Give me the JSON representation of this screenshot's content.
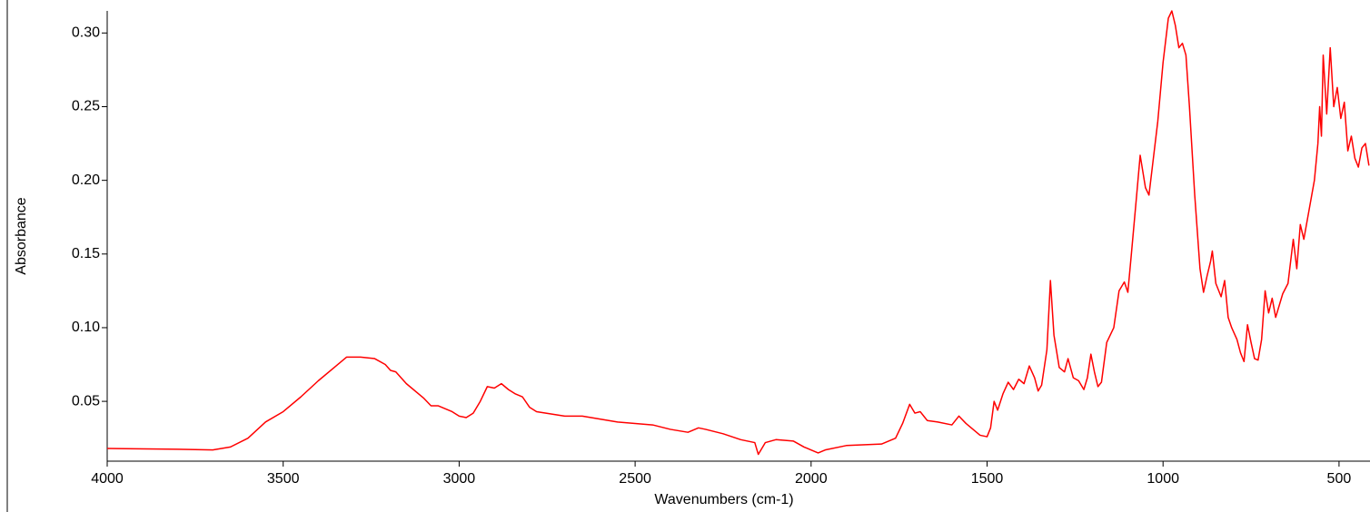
{
  "chart_data": {
    "type": "line",
    "xlabel": "Wavenumbers (cm-1)",
    "ylabel": "Absorbance",
    "color": "#ff0000",
    "xlim": [
      4000,
      412
    ],
    "ylim": [
      0.0094,
      0.315
    ],
    "xticks": [
      4000,
      3500,
      3000,
      2500,
      2000,
      1500,
      1000,
      500
    ],
    "yticks": [
      {
        "value": 0.05,
        "label": "0.05"
      },
      {
        "value": 0.1,
        "label": "0.10"
      },
      {
        "value": 0.15,
        "label": "0.15"
      },
      {
        "value": 0.2,
        "label": "0.20"
      },
      {
        "value": 0.25,
        "label": "0.25"
      },
      {
        "value": 0.3,
        "label": "0.30"
      }
    ],
    "x": [
      4000,
      3800,
      3700,
      3650,
      3600,
      3550,
      3500,
      3450,
      3400,
      3350,
      3320,
      3280,
      3240,
      3210,
      3195,
      3180,
      3150,
      3100,
      3080,
      3060,
      3040,
      3020,
      3000,
      2980,
      2960,
      2940,
      2920,
      2900,
      2880,
      2860,
      2840,
      2820,
      2800,
      2780,
      2700,
      2650,
      2600,
      2550,
      2500,
      2450,
      2400,
      2350,
      2320,
      2300,
      2250,
      2200,
      2160,
      2150,
      2130,
      2100,
      2050,
      2020,
      2000,
      1980,
      1960,
      1900,
      1800,
      1760,
      1740,
      1720,
      1705,
      1690,
      1670,
      1640,
      1600,
      1580,
      1560,
      1520,
      1500,
      1490,
      1480,
      1470,
      1455,
      1440,
      1425,
      1410,
      1395,
      1380,
      1365,
      1355,
      1345,
      1330,
      1320,
      1310,
      1295,
      1280,
      1270,
      1255,
      1240,
      1225,
      1215,
      1205,
      1195,
      1185,
      1175,
      1160,
      1140,
      1125,
      1110,
      1100,
      1090,
      1075,
      1065,
      1050,
      1040,
      1030,
      1015,
      1000,
      985,
      975,
      965,
      955,
      945,
      935,
      925,
      910,
      895,
      885,
      875,
      865,
      860,
      850,
      835,
      825,
      815,
      805,
      790,
      780,
      770,
      760,
      750,
      740,
      730,
      720,
      710,
      700,
      690,
      680,
      670,
      660,
      645,
      630,
      620,
      610,
      600,
      585,
      570,
      560,
      555,
      550,
      545,
      535,
      525,
      515,
      505,
      495,
      485,
      475,
      465,
      455,
      445,
      435,
      425,
      415
    ],
    "values": [
      0.018,
      0.0175,
      0.017,
      0.019,
      0.025,
      0.036,
      0.043,
      0.053,
      0.064,
      0.074,
      0.08,
      0.08,
      0.079,
      0.075,
      0.071,
      0.07,
      0.062,
      0.052,
      0.047,
      0.047,
      0.045,
      0.043,
      0.04,
      0.039,
      0.042,
      0.05,
      0.06,
      0.059,
      0.062,
      0.058,
      0.055,
      0.053,
      0.046,
      0.043,
      0.04,
      0.04,
      0.038,
      0.036,
      0.035,
      0.034,
      0.031,
      0.029,
      0.032,
      0.031,
      0.028,
      0.024,
      0.022,
      0.014,
      0.022,
      0.024,
      0.023,
      0.019,
      0.017,
      0.015,
      0.017,
      0.02,
      0.021,
      0.025,
      0.035,
      0.048,
      0.042,
      0.043,
      0.037,
      0.036,
      0.034,
      0.04,
      0.035,
      0.027,
      0.026,
      0.032,
      0.05,
      0.044,
      0.055,
      0.063,
      0.058,
      0.065,
      0.062,
      0.074,
      0.066,
      0.057,
      0.061,
      0.085,
      0.132,
      0.095,
      0.073,
      0.07,
      0.079,
      0.066,
      0.064,
      0.058,
      0.066,
      0.082,
      0.07,
      0.06,
      0.063,
      0.09,
      0.1,
      0.125,
      0.131,
      0.124,
      0.15,
      0.19,
      0.217,
      0.195,
      0.19,
      0.21,
      0.24,
      0.28,
      0.31,
      0.315,
      0.305,
      0.29,
      0.293,
      0.285,
      0.25,
      0.19,
      0.14,
      0.124,
      0.135,
      0.145,
      0.152,
      0.13,
      0.121,
      0.132,
      0.107,
      0.1,
      0.092,
      0.083,
      0.077,
      0.102,
      0.09,
      0.079,
      0.078,
      0.092,
      0.125,
      0.11,
      0.12,
      0.107,
      0.115,
      0.123,
      0.13,
      0.16,
      0.14,
      0.17,
      0.16,
      0.18,
      0.2,
      0.225,
      0.25,
      0.23,
      0.285,
      0.245,
      0.29,
      0.25,
      0.263,
      0.242,
      0.253,
      0.22,
      0.23,
      0.215,
      0.209,
      0.222,
      0.225,
      0.21
    ]
  }
}
